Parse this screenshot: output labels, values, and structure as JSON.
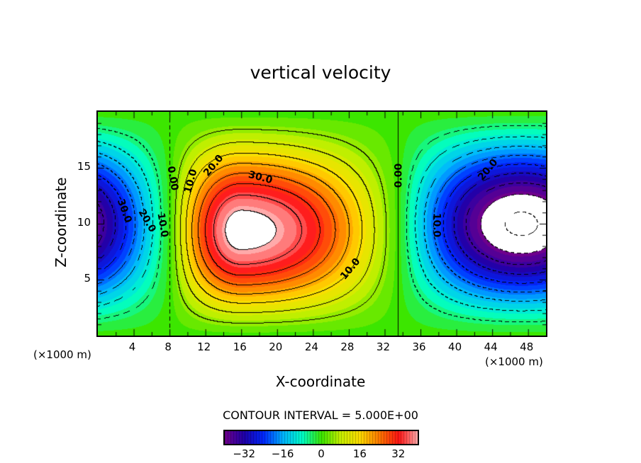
{
  "chart_data": {
    "type": "heatmap",
    "subtype": "filled contour",
    "title": "vertical velocity",
    "xlabel": "X-coordinate",
    "ylabel": "Z-coordinate",
    "x_unit_left": "(×1000 m)",
    "x_unit_right": "(×1000 m)",
    "xlim": [
      0,
      50
    ],
    "ylim": [
      0,
      20
    ],
    "xticks": [
      "4",
      "8",
      "12",
      "16",
      "20",
      "24",
      "28",
      "32",
      "36",
      "40",
      "44",
      "48"
    ],
    "yticks": [
      "5",
      "10",
      "15"
    ],
    "contour_interval_label": "CONTOUR INTERVAL = 5.000E+00",
    "contour_interval": 5,
    "colorbar": {
      "ticks": [
        "−32",
        "−16",
        "0",
        "16",
        "32"
      ],
      "range": [
        -40,
        40
      ]
    },
    "contour_labels": [
      "0.00",
      "10.0",
      "20.0",
      "30.0",
      "10.0",
      "0.00",
      "20.0",
      "10.0",
      "30.0",
      "20.0",
      "10.0"
    ],
    "features": {
      "updraft_max_center": [
        16,
        8.5
      ],
      "downdraft_centers": [
        [
          0,
          10
        ],
        [
          50,
          10
        ]
      ],
      "zero_lines_x": [
        8,
        33.5
      ],
      "value_max_approx": 42,
      "value_min_approx": -42
    }
  }
}
